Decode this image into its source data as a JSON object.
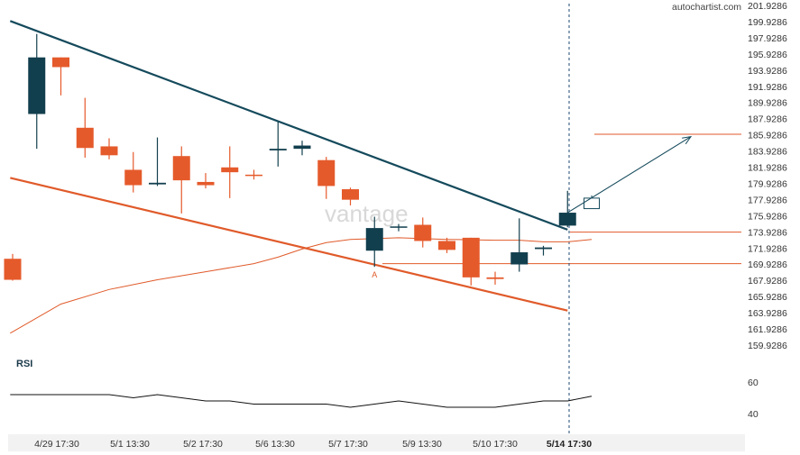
{
  "brand": "autochartist.com",
  "watermark": "vantage",
  "chart_data": {
    "type": "candlestick",
    "price_axis": {
      "min": 159.9286,
      "max": 201.9286,
      "ticks": [
        "201.9286",
        "199.9286",
        "197.9286",
        "195.9286",
        "193.9286",
        "191.9286",
        "189.9286",
        "187.9286",
        "185.9286",
        "183.9286",
        "181.9286",
        "179.9286",
        "177.9286",
        "175.9286",
        "173.9286",
        "171.9286",
        "169.9286",
        "167.9286",
        "165.9286",
        "163.9286",
        "161.9286",
        "159.9286"
      ]
    },
    "rsi_axis": {
      "label": "RSI",
      "ticks": [
        "60",
        "40"
      ]
    },
    "x_ticks": [
      "4/29 17:30",
      "5/1 13:30",
      "5/2 17:30",
      "5/6 13:30",
      "5/7 17:30",
      "5/9 13:30",
      "5/10 17:30",
      "5/14 17:30"
    ],
    "highlight_x_tick": "5/14 17:30",
    "candles": [
      {
        "o": 170.6,
        "h": 171.2,
        "l": 167.9,
        "c": 168.0,
        "dir": "down"
      },
      {
        "o": 188.5,
        "h": 198.4,
        "l": 184.2,
        "c": 195.5,
        "dir": "up"
      },
      {
        "o": 195.5,
        "h": 195.5,
        "l": 190.8,
        "c": 194.3,
        "dir": "down"
      },
      {
        "o": 186.8,
        "h": 190.5,
        "l": 183.1,
        "c": 184.3,
        "dir": "down"
      },
      {
        "o": 184.5,
        "h": 185.5,
        "l": 182.9,
        "c": 183.4,
        "dir": "down"
      },
      {
        "o": 181.6,
        "h": 183.8,
        "l": 178.8,
        "c": 179.7,
        "dir": "down"
      },
      {
        "o": 179.8,
        "h": 185.6,
        "l": 179.6,
        "c": 180.0,
        "dir": "up"
      },
      {
        "o": 183.3,
        "h": 184.5,
        "l": 176.2,
        "c": 180.3,
        "dir": "down"
      },
      {
        "o": 180.1,
        "h": 181.2,
        "l": 179.3,
        "c": 179.7,
        "dir": "down"
      },
      {
        "o": 181.9,
        "h": 184.5,
        "l": 178.1,
        "c": 181.3,
        "dir": "down"
      },
      {
        "o": 181.0,
        "h": 181.6,
        "l": 180.4,
        "c": 181.0,
        "dir": "down"
      },
      {
        "o": 184.0,
        "h": 187.5,
        "l": 182.0,
        "c": 184.2,
        "dir": "up"
      },
      {
        "o": 184.2,
        "h": 185.2,
        "l": 183.4,
        "c": 184.6,
        "dir": "up"
      },
      {
        "o": 182.8,
        "h": 183.2,
        "l": 178.0,
        "c": 179.6,
        "dir": "down"
      },
      {
        "o": 179.2,
        "h": 179.4,
        "l": 177.2,
        "c": 177.9,
        "dir": "down"
      },
      {
        "o": 171.6,
        "h": 175.8,
        "l": 169.6,
        "c": 174.4,
        "dir": "up"
      },
      {
        "o": 174.5,
        "h": 174.9,
        "l": 174.0,
        "c": 174.6,
        "dir": "up"
      },
      {
        "o": 174.8,
        "h": 175.7,
        "l": 172.0,
        "c": 172.8,
        "dir": "down"
      },
      {
        "o": 172.8,
        "h": 173.2,
        "l": 171.3,
        "c": 171.7,
        "dir": "down"
      },
      {
        "o": 173.2,
        "h": 173.2,
        "l": 167.3,
        "c": 168.3,
        "dir": "down"
      },
      {
        "o": 168.3,
        "h": 169.0,
        "l": 167.4,
        "c": 168.1,
        "dir": "down"
      },
      {
        "o": 169.9,
        "h": 175.6,
        "l": 169.0,
        "c": 171.4,
        "dir": "up"
      },
      {
        "o": 171.8,
        "h": 172.2,
        "l": 171.0,
        "c": 172.0,
        "dir": "up"
      },
      {
        "o": 174.7,
        "h": 179.0,
        "l": 174.5,
        "c": 176.3,
        "dir": "up"
      }
    ],
    "projected_candle": {
      "o": 176.8,
      "c": 178.1
    },
    "levels": [
      186.0,
      173.9,
      170.0
    ],
    "resistance_line": {
      "from": {
        "i": -0.1,
        "price": 200.0
      },
      "to": {
        "i": 23.0,
        "price": 174.2
      }
    },
    "support_line": {
      "from": {
        "i": -0.1,
        "price": 180.6
      },
      "to": {
        "i": 23.0,
        "price": 164.2
      }
    },
    "moving_average": [
      [
        -0.1,
        161.4
      ],
      [
        2,
        165.0
      ],
      [
        4,
        166.8
      ],
      [
        6,
        168.0
      ],
      [
        8,
        169.0
      ],
      [
        10,
        170.0
      ],
      [
        11,
        170.8
      ],
      [
        12,
        171.8
      ],
      [
        13,
        172.6
      ],
      [
        14,
        173.0
      ],
      [
        16,
        173.2
      ],
      [
        18,
        173.0
      ],
      [
        20,
        172.9
      ],
      [
        21,
        172.9
      ],
      [
        22,
        172.7
      ],
      [
        23,
        172.7
      ],
      [
        24,
        173.0
      ]
    ],
    "arrow": {
      "from": {
        "i": 23.0,
        "price": 176.3
      },
      "to": {
        "i": 28.0,
        "price": 185.7
      }
    },
    "point_label": {
      "text": "A",
      "i": 15.0,
      "price": 169.6
    },
    "rsi": [
      [
        -0.1,
        52
      ],
      [
        4,
        52
      ],
      [
        5,
        50
      ],
      [
        6,
        52
      ],
      [
        7,
        50
      ],
      [
        8,
        48
      ],
      [
        9,
        48
      ],
      [
        10,
        46
      ],
      [
        11,
        46
      ],
      [
        12,
        46
      ],
      [
        13,
        46
      ],
      [
        14,
        44
      ],
      [
        15,
        46
      ],
      [
        16,
        48
      ],
      [
        17,
        46
      ],
      [
        18,
        44
      ],
      [
        19,
        44
      ],
      [
        20,
        44
      ],
      [
        21,
        46
      ],
      [
        22,
        48
      ],
      [
        23,
        48
      ],
      [
        24,
        51
      ]
    ]
  }
}
